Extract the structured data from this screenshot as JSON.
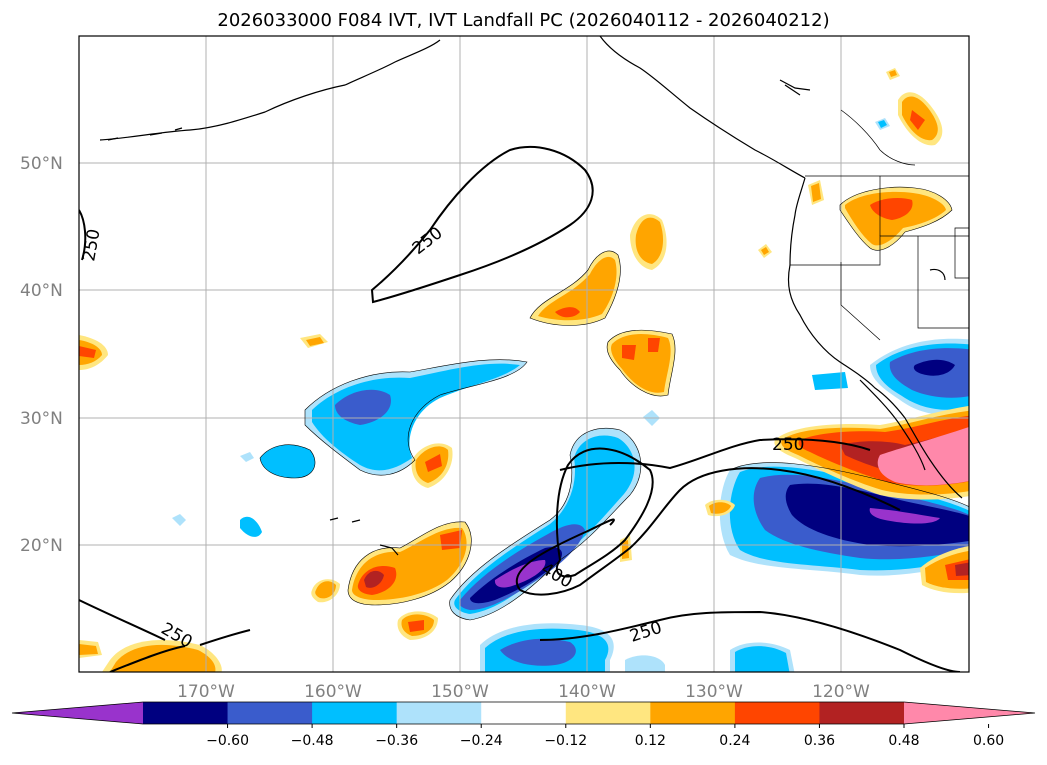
{
  "title": "2026033000 F084 IVT, IVT Landfall PC (2026040112 - 2026040212)",
  "lat_labels": [
    "50°N",
    "40°N",
    "30°N",
    "20°N"
  ],
  "lon_labels": [
    "170°W",
    "160°W",
    "150°W",
    "140°W",
    "130°W",
    "120°W"
  ],
  "colorbar": {
    "ticks": [
      "−0.60",
      "−0.48",
      "−0.36",
      "−0.24",
      "−0.12",
      "0.12",
      "0.24",
      "0.36",
      "0.48",
      "0.60"
    ],
    "colors": [
      "#9933cc",
      "#000080",
      "#3a5ccc",
      "#00bfff",
      "#aee2fb",
      "#ffffff",
      "#ffe680",
      "#ffa500",
      "#ff4500",
      "#b22222",
      "#ff88aa"
    ]
  },
  "contour_labels": [
    "250",
    "250",
    "250",
    "250",
    "250",
    "400"
  ],
  "colors": {
    "purple": "#9933cc",
    "navy": "#000080",
    "blue": "#3a5ccc",
    "cyan": "#00bfff",
    "lightblue": "#aee2fb",
    "yellow": "#ffe680",
    "orange": "#ffa500",
    "redorange": "#ff4500",
    "firebrick": "#b22222",
    "pink": "#ff88aa",
    "grid": "#b0b0b0"
  }
}
